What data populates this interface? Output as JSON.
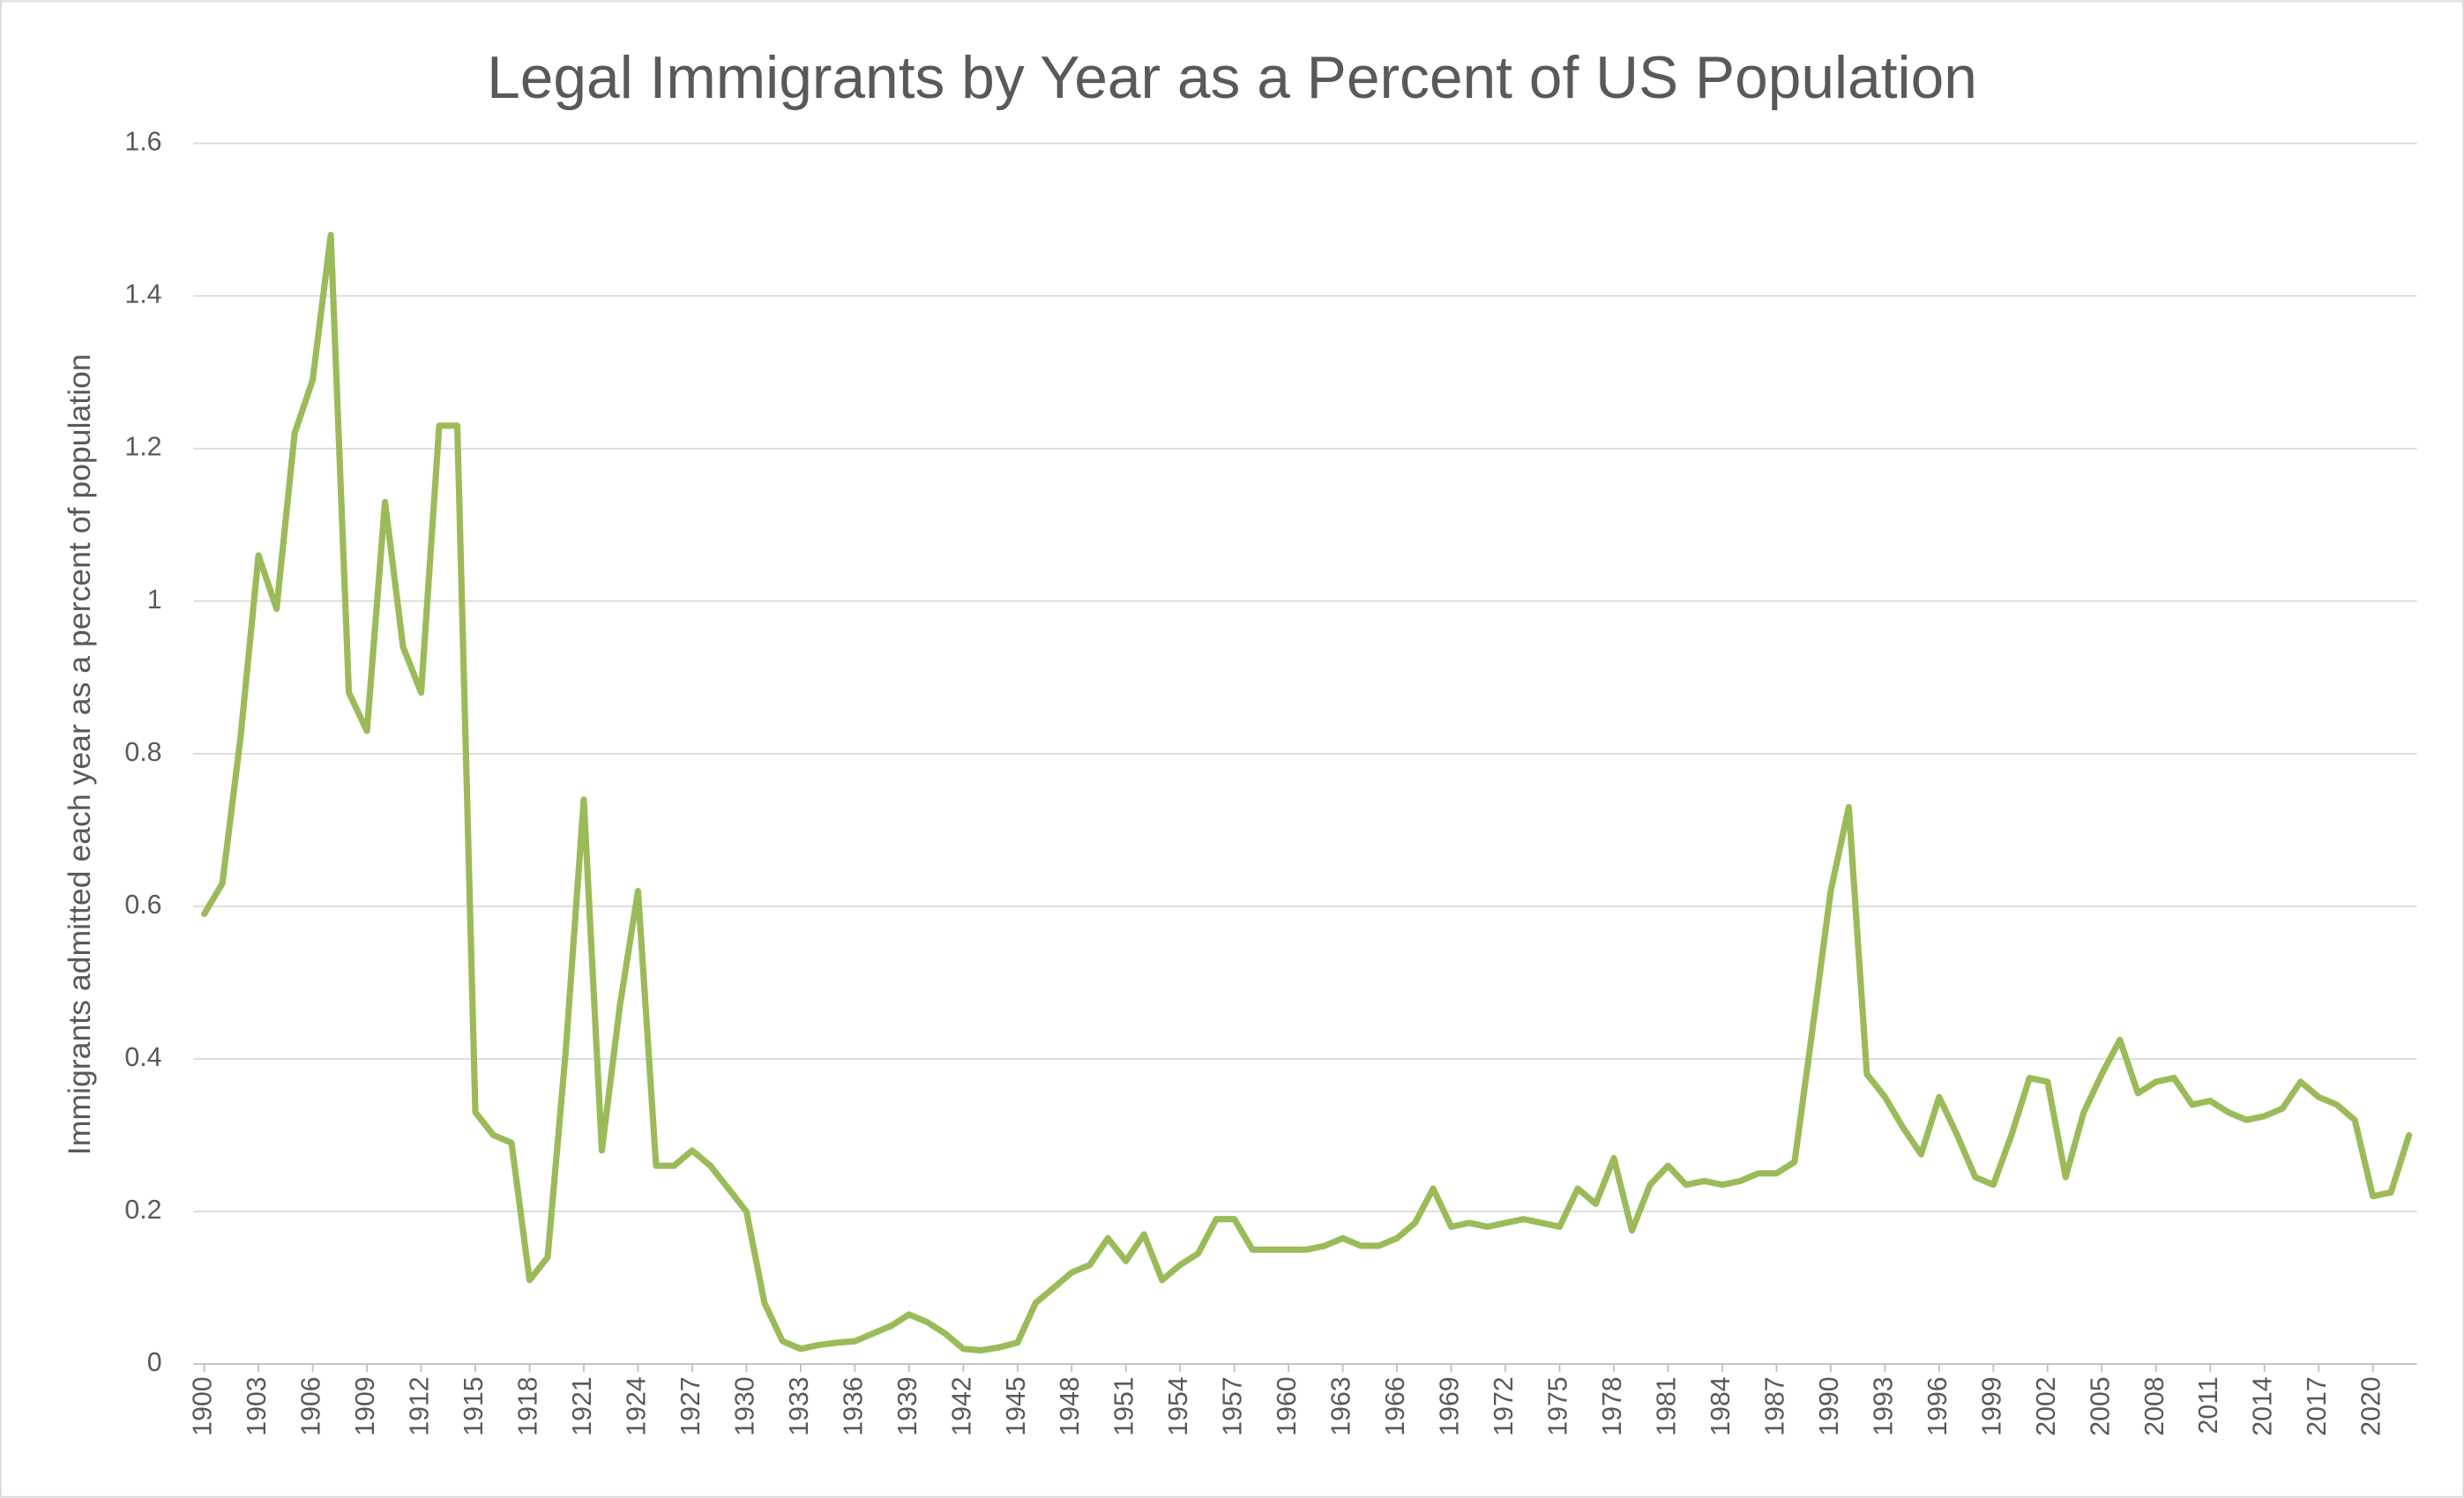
{
  "chart_data": {
    "type": "line",
    "title": "Legal Immigrants by Year as a Percent of US Population",
    "y_label": "Immigrants admitted each year as a percent of population",
    "x": [
      1900,
      1901,
      1902,
      1903,
      1904,
      1905,
      1906,
      1907,
      1908,
      1909,
      1910,
      1911,
      1912,
      1913,
      1914,
      1915,
      1916,
      1917,
      1918,
      1919,
      1920,
      1921,
      1922,
      1923,
      1924,
      1925,
      1926,
      1927,
      1928,
      1929,
      1930,
      1931,
      1932,
      1933,
      1934,
      1935,
      1936,
      1937,
      1938,
      1939,
      1940,
      1941,
      1942,
      1943,
      1944,
      1945,
      1946,
      1947,
      1948,
      1949,
      1950,
      1951,
      1952,
      1953,
      1954,
      1955,
      1956,
      1957,
      1958,
      1959,
      1960,
      1961,
      1962,
      1963,
      1964,
      1965,
      1966,
      1967,
      1968,
      1969,
      1970,
      1971,
      1972,
      1973,
      1974,
      1975,
      1976,
      1977,
      1978,
      1979,
      1980,
      1981,
      1982,
      1983,
      1984,
      1985,
      1986,
      1987,
      1988,
      1989,
      1990,
      1991,
      1992,
      1993,
      1994,
      1995,
      1996,
      1997,
      1998,
      1999,
      2000,
      2001,
      2002,
      2003,
      2004,
      2005,
      2006,
      2007,
      2008,
      2009,
      2010,
      2011,
      2012,
      2013,
      2014,
      2015,
      2016,
      2017,
      2018,
      2019,
      2020,
      2021,
      2022
    ],
    "series": [
      {
        "color": "#9bbb59",
        "values": [
          0.59,
          0.63,
          0.82,
          1.06,
          0.99,
          1.22,
          1.29,
          1.48,
          0.88,
          0.83,
          1.13,
          0.94,
          0.88,
          1.23,
          1.23,
          0.33,
          0.3,
          0.29,
          0.11,
          0.14,
          0.41,
          0.74,
          0.28,
          0.47,
          0.62,
          0.26,
          0.26,
          0.28,
          0.26,
          0.23,
          0.2,
          0.08,
          0.03,
          0.02,
          0.025,
          0.028,
          0.03,
          0.04,
          0.05,
          0.065,
          0.055,
          0.04,
          0.02,
          0.018,
          0.022,
          0.028,
          0.08,
          0.1,
          0.12,
          0.13,
          0.165,
          0.135,
          0.17,
          0.11,
          0.13,
          0.145,
          0.19,
          0.19,
          0.15,
          0.15,
          0.15,
          0.15,
          0.155,
          0.165,
          0.155,
          0.155,
          0.165,
          0.185,
          0.23,
          0.18,
          0.185,
          0.18,
          0.185,
          0.19,
          0.185,
          0.18,
          0.23,
          0.21,
          0.27,
          0.175,
          0.235,
          0.26,
          0.235,
          0.24,
          0.235,
          0.24,
          0.25,
          0.25,
          0.265,
          0.44,
          0.62,
          0.73,
          0.38,
          0.35,
          0.31,
          0.275,
          0.35,
          0.3,
          0.245,
          0.235,
          0.3,
          0.375,
          0.37,
          0.245,
          0.33,
          0.38,
          0.425,
          0.355,
          0.37,
          0.375,
          0.34,
          0.345,
          0.33,
          0.32,
          0.325,
          0.335,
          0.37,
          0.35,
          0.34,
          0.32,
          0.22,
          0.225,
          0.3
        ]
      }
    ],
    "xlim": [
      1900,
      2022
    ],
    "xticks": [
      1900,
      1903,
      1906,
      1909,
      1912,
      1915,
      1918,
      1921,
      1924,
      1927,
      1930,
      1933,
      1936,
      1939,
      1942,
      1945,
      1948,
      1951,
      1954,
      1957,
      1960,
      1963,
      1966,
      1969,
      1972,
      1975,
      1978,
      1981,
      1984,
      1987,
      1990,
      1993,
      1996,
      1999,
      2002,
      2005,
      2008,
      2011,
      2014,
      2017,
      2020
    ],
    "ylim": [
      0,
      1.6
    ],
    "yticks": [
      0,
      0.2,
      0.4,
      0.6,
      0.8,
      1,
      1.2,
      1.4,
      1.6
    ],
    "grid": true
  }
}
